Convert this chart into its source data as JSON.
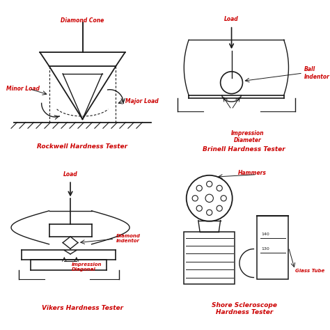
{
  "title_color": "#cc0000",
  "line_color": "#1a1a1a",
  "annotation_color": "#cc0000",
  "bg_color": "#ffffff",
  "titles": [
    "Rockwell Hardness Tester",
    "Brinell Hardness Tester",
    "Vikers Hardness Tester",
    "Shore Scleroscope\nHardness Tester"
  ]
}
